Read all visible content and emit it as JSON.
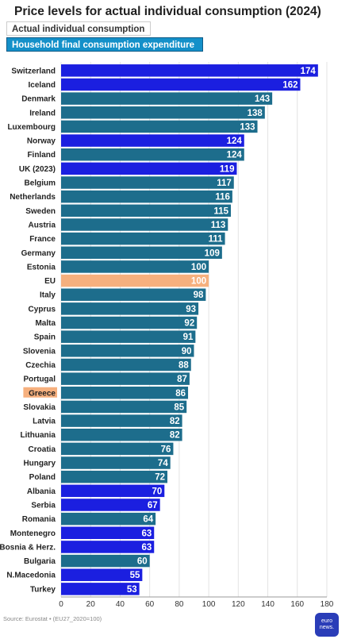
{
  "header": {
    "title": "Price levels for actual individual consumption (2024)",
    "tabs": [
      {
        "label": "Actual individual consumption",
        "active": false
      },
      {
        "label": "Household final consumption expenditure",
        "active": true
      }
    ]
  },
  "footer": {
    "source": "Source: Eurostat • (EU27_2020=100)",
    "logo": "euro news."
  },
  "colors": {
    "non_eu": "#1b1fe0",
    "eu_member": "#1d6d8c",
    "eu_average": "#f6b07e",
    "highlight_label": "#f6b07e",
    "tab_active": "#1490c9",
    "logo": "#2a3db8"
  },
  "chart_data": {
    "type": "bar",
    "orientation": "horizontal",
    "title": "Price levels for actual individual consumption (2024)",
    "xlim": [
      0,
      180
    ],
    "xticks": [
      0,
      20,
      40,
      60,
      80,
      100,
      120,
      140,
      160,
      180
    ],
    "grid": true,
    "highlight": "Greece",
    "categories": [
      "Switzerland",
      "Iceland",
      "Denmark",
      "Ireland",
      "Luxembourg",
      "Norway",
      "Finland",
      "UK (2023)",
      "Belgium",
      "Netherlands",
      "Sweden",
      "Austria",
      "France",
      "Germany",
      "Estonia",
      "EU",
      "Italy",
      "Cyprus",
      "Malta",
      "Spain",
      "Slovenia",
      "Czechia",
      "Portugal",
      "Greece",
      "Slovakia",
      "Latvia",
      "Lithuania",
      "Croatia",
      "Hungary",
      "Poland",
      "Albania",
      "Serbia",
      "Romania",
      "Montenegro",
      "Bosnia & Herz.",
      "Bulgaria",
      "N.Macedonia",
      "Turkey"
    ],
    "values": [
      174,
      162,
      143,
      138,
      133,
      124,
      124,
      119,
      117,
      116,
      115,
      113,
      111,
      109,
      100,
      100,
      98,
      93,
      92,
      91,
      90,
      88,
      87,
      86,
      85,
      82,
      82,
      76,
      74,
      72,
      70,
      67,
      64,
      63,
      63,
      60,
      55,
      53
    ],
    "groups": [
      "non_eu",
      "non_eu",
      "eu_member",
      "eu_member",
      "eu_member",
      "non_eu",
      "eu_member",
      "non_eu",
      "eu_member",
      "eu_member",
      "eu_member",
      "eu_member",
      "eu_member",
      "eu_member",
      "eu_member",
      "eu_average",
      "eu_member",
      "eu_member",
      "eu_member",
      "eu_member",
      "eu_member",
      "eu_member",
      "eu_member",
      "eu_member",
      "eu_member",
      "eu_member",
      "eu_member",
      "eu_member",
      "eu_member",
      "eu_member",
      "non_eu",
      "non_eu",
      "eu_member",
      "non_eu",
      "non_eu",
      "eu_member",
      "non_eu",
      "non_eu"
    ]
  }
}
